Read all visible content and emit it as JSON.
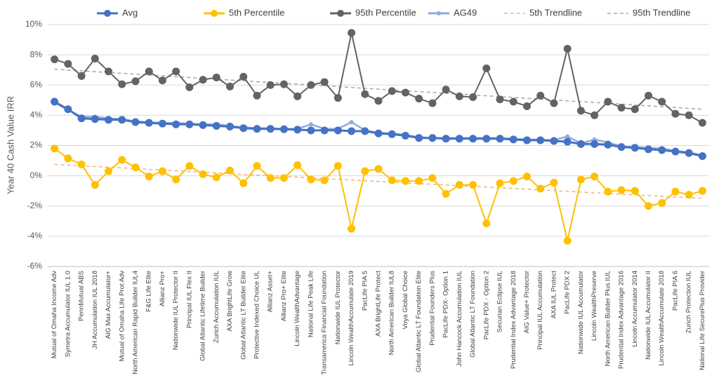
{
  "chart_data": {
    "type": "line",
    "y_label": "Year 40 Cash Value IRR",
    "categories": [
      "Mutual of Omaha Income Adv",
      "Symetra Accumulator IUL 1.0",
      "PennMutual ABS",
      "JH Accumulation IUL 2018",
      "AIG Max Accumulator+",
      "Mutual of Omaha Life Prot Adv",
      "North American Rapid Builder IUL4",
      "F&G Life Elite",
      "Allianz Pro+",
      "Nationwide IUL Protector II",
      "Principal IUL Flex II",
      "Global Atlantic Lifetime Builder",
      "Zurich Accumulation IUL",
      "AXA BrightLife Grow",
      "Global Atlantic LT Builder Elite",
      "Protective Indexed Choice UL",
      "Allianz Asset+",
      "Allianz Pro+ Elite",
      "Lincoln WealthAdvantage",
      "National Life Peak Life",
      "Transamerica Financial Foundation",
      "Nationwide IUL Protector",
      "Lincoln WealthAccumulate 2019",
      "PacLife PIA 5",
      "AXA BrightLife Protect",
      "North American Builder IUL8",
      "Voya Global Choice",
      "Global Atlantic LT Foundation Elite",
      "Prudential Founders Plus",
      "PacLife PDX- Option 1",
      "John Hancock Accumulation IUL",
      "Global Atlantic LT Foundation",
      "PacLife PDX - Option 2",
      "Securian Eclipse IUL",
      "Prudential Index Advantage 2018",
      "AIG Value+ Protector",
      "Principal IUL Accumulation",
      "AXA IUL Protect",
      "PacLife PDX 2",
      "Nationwide IUL Accumulator",
      "Lincoln WealthPreserve",
      "North American Builder Plus IUL",
      "Prudential Index Advantage 2016",
      "Lincoln Accumulator 2014",
      "Nationwide IUL Accumulator II",
      "Lincoln WealthAccumulate 2018",
      "PacLife PIA 6",
      "Zurich Protection IUL",
      "National Life SecurePlus Provider"
    ],
    "series": [
      {
        "name": "Avg",
        "color": "#4472c4",
        "marker": "large",
        "dashed": false,
        "width": 3,
        "values": [
          4.9,
          4.4,
          3.8,
          3.75,
          3.7,
          3.7,
          3.55,
          3.5,
          3.45,
          3.4,
          3.4,
          3.35,
          3.3,
          3.25,
          3.15,
          3.1,
          3.1,
          3.08,
          3.05,
          3.0,
          3.0,
          3.0,
          2.95,
          2.95,
          2.8,
          2.75,
          2.65,
          2.5,
          2.5,
          2.45,
          2.45,
          2.45,
          2.45,
          2.45,
          2.4,
          2.35,
          2.35,
          2.3,
          2.25,
          2.1,
          2.1,
          2.05,
          1.9,
          1.85,
          1.75,
          1.7,
          1.6,
          1.5,
          1.3
        ]
      },
      {
        "name": "5th Percentile",
        "color": "#ffc000",
        "marker": "large",
        "dashed": false,
        "width": 2,
        "values": [
          1.8,
          1.15,
          0.75,
          -0.6,
          0.3,
          1.05,
          0.55,
          -0.05,
          0.3,
          -0.25,
          0.65,
          0.1,
          -0.1,
          0.35,
          -0.5,
          0.65,
          -0.15,
          -0.15,
          0.7,
          -0.25,
          -0.3,
          0.65,
          -3.5,
          0.3,
          0.45,
          -0.3,
          -0.35,
          -0.35,
          -0.15,
          -1.2,
          -0.6,
          -0.6,
          -3.15,
          -0.5,
          -0.35,
          -0.05,
          -0.85,
          -0.45,
          -4.3,
          -0.25,
          -0.05,
          -1.05,
          -0.95,
          -1.0,
          -2.0,
          -1.8,
          -1.05,
          -1.25,
          -1.0
        ]
      },
      {
        "name": "95th Percentile",
        "color": "#636363",
        "marker": "large",
        "dashed": false,
        "width": 2,
        "values": [
          7.7,
          7.4,
          6.6,
          7.75,
          6.9,
          6.05,
          6.25,
          6.9,
          6.3,
          6.9,
          5.85,
          6.35,
          6.5,
          5.9,
          6.55,
          5.3,
          6.0,
          6.05,
          5.25,
          6.0,
          6.2,
          5.15,
          9.45,
          5.4,
          4.95,
          5.6,
          5.5,
          5.1,
          4.8,
          5.7,
          5.25,
          5.2,
          7.1,
          5.05,
          4.9,
          4.6,
          5.3,
          4.8,
          8.4,
          4.3,
          4.0,
          4.9,
          4.5,
          4.4,
          5.3,
          4.9,
          4.1,
          4.0,
          3.5
        ]
      },
      {
        "name": "AG49",
        "color": "#8faadc",
        "marker": "small",
        "dashed": false,
        "width": 2.5,
        "values": [
          4.85,
          4.35,
          3.9,
          3.9,
          3.8,
          3.75,
          3.6,
          3.55,
          3.5,
          3.5,
          3.45,
          3.4,
          3.4,
          3.3,
          3.2,
          3.15,
          3.15,
          3.1,
          3.1,
          3.4,
          3.1,
          3.1,
          3.55,
          3.0,
          2.85,
          2.8,
          2.7,
          2.55,
          2.5,
          2.5,
          2.5,
          2.5,
          2.5,
          2.5,
          2.45,
          2.4,
          2.4,
          2.35,
          2.6,
          2.15,
          2.4,
          2.2,
          1.95,
          1.9,
          1.85,
          1.8,
          1.65,
          1.55,
          1.35
        ]
      },
      {
        "name": "5th Trendline",
        "color": "#f4b183",
        "marker": "none",
        "dashed": true,
        "width": 1.5,
        "values": [
          0.75,
          0.7,
          0.66,
          0.61,
          0.56,
          0.52,
          0.47,
          0.42,
          0.38,
          0.33,
          0.28,
          0.23,
          0.19,
          0.14,
          0.09,
          0.05,
          0.0,
          -0.05,
          -0.09,
          -0.14,
          -0.19,
          -0.23,
          -0.28,
          -0.33,
          -0.38,
          -0.42,
          -0.47,
          -0.52,
          -0.56,
          -0.61,
          -0.66,
          -0.7,
          -0.75,
          -0.8,
          -0.84,
          -0.89,
          -0.94,
          -0.98,
          -1.03,
          -1.08,
          -1.13,
          -1.17,
          -1.22,
          -1.27,
          -1.31,
          -1.36,
          -1.41,
          -1.45,
          -1.5
        ]
      },
      {
        "name": "95th Trendline",
        "color": "#a6a6a6",
        "marker": "none",
        "dashed": true,
        "width": 1.5,
        "values": [
          7.05,
          6.99,
          6.94,
          6.88,
          6.83,
          6.77,
          6.72,
          6.66,
          6.61,
          6.55,
          6.5,
          6.44,
          6.39,
          6.33,
          6.28,
          6.22,
          6.17,
          6.11,
          6.06,
          6.0,
          5.95,
          5.89,
          5.84,
          5.78,
          5.73,
          5.67,
          5.62,
          5.56,
          5.51,
          5.45,
          5.4,
          5.34,
          5.29,
          5.23,
          5.18,
          5.12,
          5.07,
          5.01,
          4.96,
          4.9,
          4.85,
          4.79,
          4.74,
          4.68,
          4.62,
          4.57,
          4.51,
          4.46,
          4.4
        ]
      }
    ],
    "ylim": [
      -6,
      10
    ],
    "yticks": [
      {
        "value": -6,
        "label": "-6%"
      },
      {
        "value": -4,
        "label": "-4%"
      },
      {
        "value": -2,
        "label": "-2%"
      },
      {
        "value": 0,
        "label": "0%"
      },
      {
        "value": 2,
        "label": "2%"
      },
      {
        "value": 4,
        "label": "4%"
      },
      {
        "value": 6,
        "label": "6%"
      },
      {
        "value": 8,
        "label": "8%"
      },
      {
        "value": 10,
        "label": "10%"
      }
    ],
    "grid": true,
    "legend": "top"
  }
}
